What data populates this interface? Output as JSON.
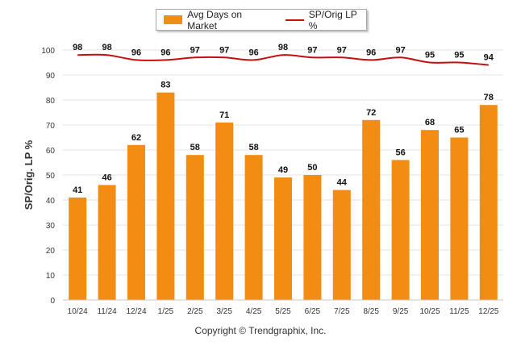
{
  "chart_data": {
    "type": "bar",
    "categories": [
      "10/24",
      "11/24",
      "12/24",
      "1/25",
      "2/25",
      "3/25",
      "4/25",
      "5/25",
      "6/25",
      "7/25",
      "8/25",
      "9/25",
      "10/25",
      "11/25",
      "12/25"
    ],
    "series": [
      {
        "name": "Avg Days on Market",
        "type": "bar",
        "color": "#f28c13",
        "values": [
          41,
          46,
          62,
          83,
          58,
          71,
          58,
          49,
          50,
          44,
          72,
          56,
          68,
          65,
          78
        ]
      },
      {
        "name": "SP/Orig LP %",
        "type": "line",
        "color": "#c40f10",
        "values": [
          98,
          98,
          96,
          96,
          97,
          97,
          96,
          98,
          97,
          97,
          96,
          97,
          95,
          95,
          94
        ]
      }
    ],
    "ylabel": "SP/Orig. LP %",
    "xlabel": "",
    "ylim": [
      0,
      100
    ],
    "yticks": [
      0,
      10,
      20,
      30,
      40,
      50,
      60,
      70,
      80,
      90,
      100
    ],
    "grid": true,
    "legend": "top-center"
  },
  "footer": {
    "copyright": "Copyright © Trendgraphix, Inc."
  }
}
